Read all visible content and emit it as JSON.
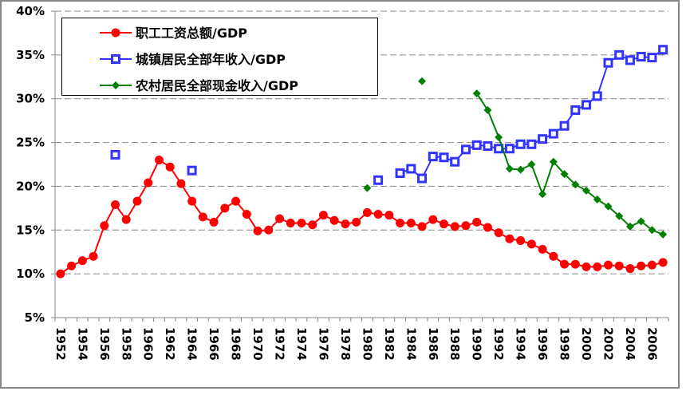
{
  "chart_data": {
    "type": "line",
    "title": "",
    "xlabel": "",
    "ylabel": "",
    "x": [
      1952,
      1953,
      1954,
      1955,
      1956,
      1957,
      1958,
      1959,
      1960,
      1961,
      1962,
      1963,
      1964,
      1965,
      1966,
      1967,
      1968,
      1969,
      1970,
      1971,
      1972,
      1973,
      1974,
      1975,
      1976,
      1977,
      1978,
      1979,
      1980,
      1981,
      1982,
      1983,
      1984,
      1985,
      1986,
      1987,
      1988,
      1989,
      1990,
      1991,
      1992,
      1993,
      1994,
      1995,
      1996,
      1997,
      1998,
      1999,
      2000,
      2001,
      2002,
      2003,
      2004,
      2005,
      2006,
      2007
    ],
    "x_tick_labels": [
      "1952",
      "1954",
      "1956",
      "1958",
      "1960",
      "1962",
      "1964",
      "1966",
      "1968",
      "1970",
      "1972",
      "1974",
      "1976",
      "1978",
      "1980",
      "1982",
      "1984",
      "1986",
      "1988",
      "1990",
      "1992",
      "1994",
      "1996",
      "1998",
      "2000",
      "2002",
      "2004",
      "2006"
    ],
    "y_tick_labels": [
      "5%",
      "10%",
      "15%",
      "20%",
      "25%",
      "30%",
      "35%",
      "40%"
    ],
    "ylim": [
      5,
      40
    ],
    "y_unit": "%",
    "grid": "horizontal-dashed",
    "legend_position": "top-left",
    "series": [
      {
        "name": "职工工资总额/GDP",
        "color": "#ff0000",
        "marker": "circle",
        "values": [
          10.0,
          10.9,
          11.5,
          12.0,
          15.5,
          17.9,
          16.2,
          18.3,
          20.4,
          23.0,
          22.2,
          20.3,
          18.3,
          16.5,
          15.9,
          17.5,
          18.3,
          16.8,
          14.9,
          15.0,
          16.3,
          15.8,
          15.8,
          15.6,
          16.7,
          16.1,
          15.7,
          15.9,
          17.0,
          16.8,
          16.7,
          15.8,
          15.8,
          15.4,
          16.2,
          15.7,
          15.4,
          15.5,
          15.9,
          15.3,
          14.7,
          14.0,
          13.8,
          13.4,
          12.8,
          12.0,
          11.1,
          11.1,
          10.8,
          10.8,
          11.0,
          10.9,
          10.6,
          10.9,
          11.0,
          11.3
        ]
      },
      {
        "name": "城镇居民全部年收入/GDP",
        "color": "#3333ff",
        "marker": "square",
        "values": [
          null,
          null,
          null,
          null,
          null,
          23.6,
          null,
          null,
          null,
          null,
          null,
          null,
          21.8,
          null,
          null,
          null,
          null,
          null,
          null,
          null,
          null,
          null,
          null,
          null,
          null,
          null,
          null,
          null,
          null,
          20.7,
          null,
          21.5,
          22.0,
          20.9,
          23.4,
          23.3,
          22.8,
          24.2,
          24.7,
          24.6,
          24.3,
          24.3,
          24.8,
          24.8,
          25.4,
          26.0,
          26.9,
          28.7,
          29.3,
          30.3,
          34.1,
          35.0,
          34.4,
          34.8,
          34.7,
          35.6
        ]
      },
      {
        "name": "农村居民全部现金收入/GDP",
        "color": "#008000",
        "marker": "diamond",
        "values": [
          null,
          null,
          null,
          null,
          null,
          null,
          null,
          null,
          null,
          null,
          null,
          null,
          null,
          null,
          null,
          null,
          null,
          null,
          null,
          null,
          null,
          null,
          null,
          null,
          null,
          null,
          null,
          null,
          19.8,
          null,
          null,
          null,
          null,
          32.0,
          null,
          null,
          null,
          null,
          30.6,
          28.7,
          25.6,
          22.0,
          21.9,
          22.5,
          19.1,
          22.8,
          21.4,
          20.2,
          19.5,
          18.5,
          17.7,
          16.6,
          15.4,
          16.0,
          15.0,
          14.5
        ]
      }
    ]
  }
}
